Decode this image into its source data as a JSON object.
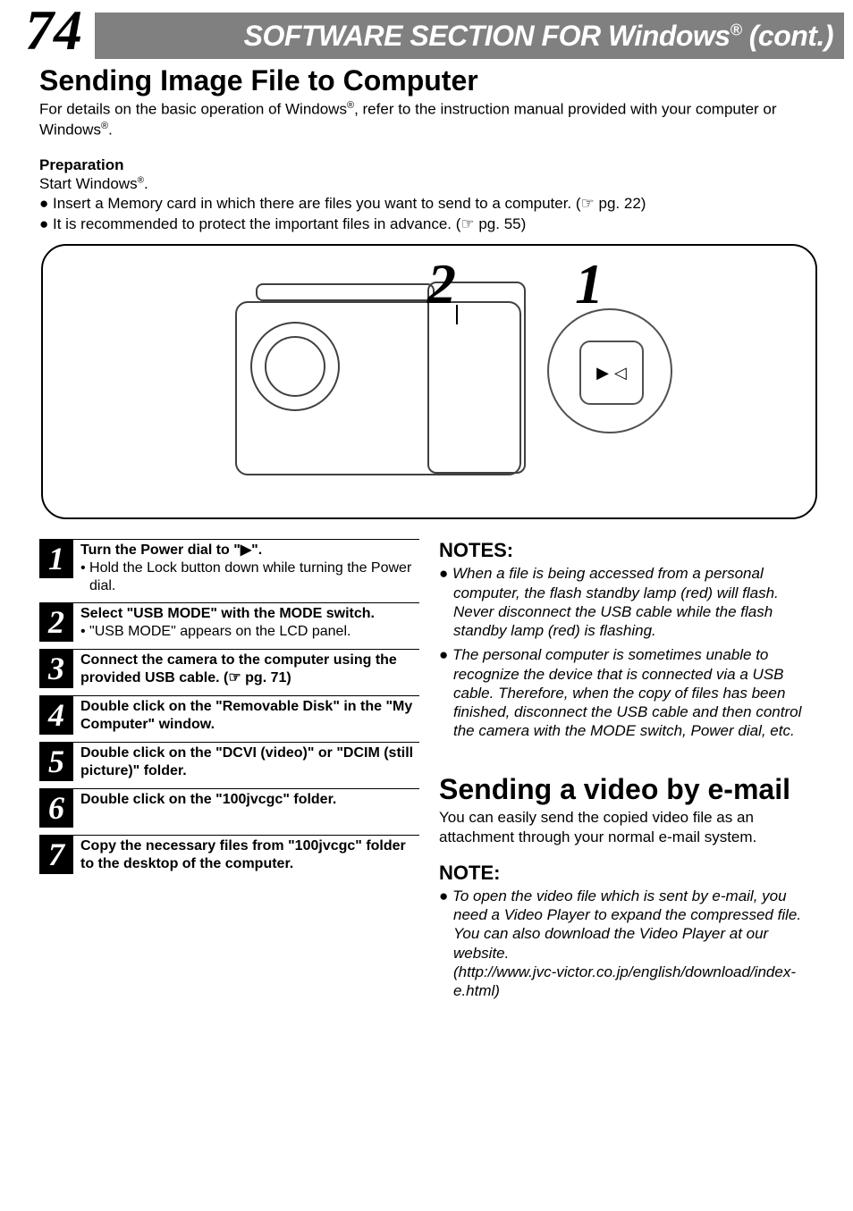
{
  "page_number": "74",
  "header_title_html": "SOFTWARE SECTION FOR Windows<sup>®</sup> (cont.)",
  "section_title": "Sending Image File to Computer",
  "intro_html": "For details on the basic operation of Windows<sup>®</sup>, refer to the instruction manual provided with your computer or Windows<sup>®</sup>.",
  "preparation": {
    "heading": "Preparation",
    "line1_html": "Start Windows<sup>®</sup>.",
    "bullets": [
      "● Insert a Memory card in which there are files you want to send to a computer. (☞ pg. 22)",
      "● It is recommended to protect the important files in advance. (☞ pg. 55)"
    ]
  },
  "callouts": {
    "two": "2",
    "one": "1"
  },
  "dial_icon_glyphs": {
    "play": "▶",
    "tri": "◁"
  },
  "steps": [
    {
      "num": "1",
      "bold": "Turn the Power dial to \"▶\".",
      "sub": "• Hold the Lock button down while turning the Power dial."
    },
    {
      "num": "2",
      "bold": "Select \"USB MODE\" with the MODE switch.",
      "sub": "• \"USB MODE\" appears on the LCD panel."
    },
    {
      "num": "3",
      "bold": "Connect the camera to the computer using the provided USB cable. (☞ pg. 71)",
      "sub": ""
    },
    {
      "num": "4",
      "bold": "Double click on the \"Removable Disk\" in the \"My Computer\" window.",
      "sub": ""
    },
    {
      "num": "5",
      "bold": "Double click on the \"DCVI (video)\" or \"DCIM (still picture)\" folder.",
      "sub": ""
    },
    {
      "num": "6",
      "bold": "Double click on the \"100jvcgc\" folder.",
      "sub": ""
    },
    {
      "num": "7",
      "bold": "Copy the necessary files from \"100jvcgc\" folder to the desktop of the computer.",
      "sub": ""
    }
  ],
  "notes": {
    "heading": "NOTES:",
    "items": [
      "● When a file is being accessed from a personal computer, the flash standby lamp (red) will flash. Never disconnect the USB cable while the flash standby lamp (red) is flashing.",
      "● The personal computer is sometimes unable to recognize the device that is connected via a USB cable. Therefore, when the copy of files has been finished, disconnect the USB cable and then control the camera with the MODE switch, Power dial, etc."
    ]
  },
  "section2": {
    "title": "Sending a video by e-mail",
    "body": "You can easily send the copied video file as an attachment through your normal e-mail system.",
    "note_heading": "NOTE:",
    "note_item": "● To open the video file which is sent by e-mail, you need a Video Player to expand the compressed file. You can also download the Video Player at our website.\n(http://www.jvc-victor.co.jp/english/download/index-e.html)"
  },
  "colors": {
    "header_bg": "#808080",
    "step_bg": "#000000",
    "text": "#000000",
    "page_bg": "#ffffff"
  },
  "typography": {
    "page_number_fontsize": 64,
    "header_title_fontsize": 32,
    "section_title_fontsize": 32,
    "body_fontsize": 17,
    "step_num_fontsize": 36,
    "notes_head_fontsize": 22
  }
}
